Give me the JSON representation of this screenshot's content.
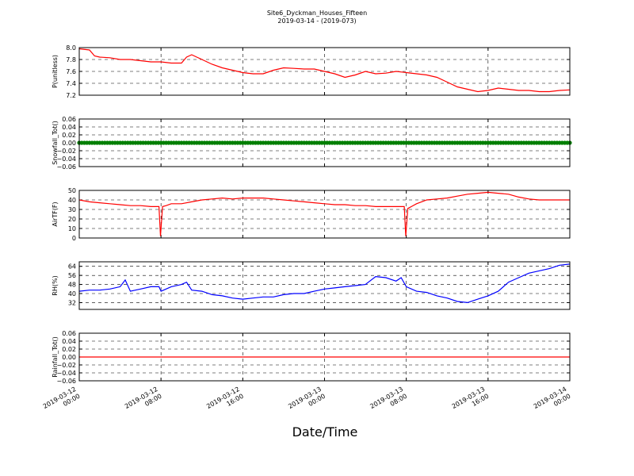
{
  "chart_data": {
    "type": "line",
    "title": "Site6_Dyckman_Houses_Fifteen",
    "subtitle": "2019-03-14 - (2019-073)",
    "xlabel": "Date/Time",
    "x_ticks": [
      {
        "line1": "2019-03-12",
        "line2": "00:00"
      },
      {
        "line1": "2019-03-12",
        "line2": "08:00"
      },
      {
        "line1": "2019-03-12",
        "line2": "16:00"
      },
      {
        "line1": "2019-03-13",
        "line2": "00:00"
      },
      {
        "line1": "2019-03-13",
        "line2": "08:00"
      },
      {
        "line1": "2019-03-13",
        "line2": "16:00"
      },
      {
        "line1": "2019-03-14",
        "line2": "00:00"
      }
    ],
    "xlim_hours": [
      0,
      48
    ],
    "grid": true,
    "panels": [
      {
        "ylabel": "P(unitless)",
        "color": "#ff0000",
        "style": "line",
        "ylim": [
          7.2,
          8.0
        ],
        "yticks": [
          "7.2",
          "7.4",
          "7.6",
          "7.8",
          "8.0"
        ],
        "x": [
          0,
          1,
          1.5,
          2,
          3,
          4,
          5,
          6,
          7,
          8,
          9,
          10,
          10.5,
          11,
          11.5,
          12,
          13,
          14,
          15,
          16,
          17,
          18,
          19,
          20,
          21,
          22,
          23,
          24,
          25,
          26,
          27,
          28,
          29,
          30,
          31,
          32,
          33,
          34,
          35,
          36,
          37,
          38,
          39,
          40,
          41,
          42,
          43,
          44,
          45,
          46,
          47,
          48
        ],
        "y": [
          7.98,
          7.96,
          7.86,
          7.84,
          7.83,
          7.8,
          7.8,
          7.78,
          7.76,
          7.76,
          7.74,
          7.74,
          7.84,
          7.88,
          7.84,
          7.8,
          7.72,
          7.66,
          7.62,
          7.58,
          7.56,
          7.56,
          7.62,
          7.66,
          7.65,
          7.64,
          7.64,
          7.6,
          7.56,
          7.5,
          7.54,
          7.6,
          7.56,
          7.57,
          7.6,
          7.58,
          7.56,
          7.54,
          7.5,
          7.42,
          7.34,
          7.3,
          7.26,
          7.28,
          7.32,
          7.3,
          7.28,
          7.28,
          7.26,
          7.26,
          7.28,
          7.29
        ]
      },
      {
        "ylabel": "Snowfall_Tot()",
        "color": "#007f00",
        "style": "markers",
        "ylim": [
          -0.06,
          0.06
        ],
        "yticks": [
          "−0.06",
          "−0.04",
          "−0.02",
          "0.00",
          "0.02",
          "0.04",
          "0.06"
        ],
        "constant": 0.0
      },
      {
        "ylabel": "AirTF(F)",
        "color": "#ff0000",
        "style": "line",
        "ylim": [
          0,
          50
        ],
        "yticks": [
          "0",
          "10",
          "20",
          "30",
          "40",
          "50"
        ],
        "x": [
          0,
          1,
          2,
          3,
          4,
          5,
          6,
          7,
          7.8,
          7.95,
          8.15,
          8.5,
          9,
          10,
          11,
          12,
          13,
          14,
          15,
          16,
          17,
          18,
          19,
          20,
          21,
          22,
          23,
          24,
          25,
          26,
          27,
          28,
          29,
          30,
          31,
          31.8,
          31.95,
          32.15,
          32.5,
          33,
          34,
          35,
          36,
          37,
          38,
          39,
          40,
          41,
          42,
          43,
          44,
          45,
          46,
          47,
          48
        ],
        "y": [
          40,
          38,
          37,
          36,
          35,
          34,
          34,
          33,
          33,
          2,
          33,
          34,
          36,
          36,
          38,
          40,
          41,
          42,
          41,
          42,
          42,
          42,
          41,
          40,
          39,
          38,
          37,
          36,
          35,
          35,
          34,
          34,
          33,
          33,
          33,
          33,
          2,
          31,
          33,
          36,
          40,
          41,
          42,
          44,
          46,
          47,
          48,
          47,
          46,
          43,
          41,
          40,
          40,
          40,
          40
        ]
      },
      {
        "ylabel": "RH(%)",
        "color": "#0000ff",
        "style": "line",
        "ylim": [
          26,
          68
        ],
        "yticks": [
          "32",
          "40",
          "48",
          "56",
          "64"
        ],
        "x": [
          0,
          1,
          2,
          3,
          4,
          4.5,
          5,
          6,
          7,
          7.8,
          8,
          9,
          10,
          10.5,
          11,
          12,
          13,
          14,
          15,
          16,
          17,
          18,
          19,
          20,
          21,
          22,
          23,
          24,
          25,
          26,
          27,
          28,
          29,
          30,
          31,
          31.5,
          32,
          33,
          34,
          35,
          36,
          37,
          38,
          39,
          40,
          41,
          42,
          43,
          44,
          45,
          46,
          47,
          48
        ],
        "y": [
          42,
          43,
          43,
          44,
          46,
          52,
          42,
          44,
          46,
          46,
          42,
          46,
          48,
          50,
          43,
          42,
          39,
          38,
          36,
          35,
          36,
          37,
          37,
          39,
          40,
          40,
          42,
          44,
          45,
          46,
          47,
          48,
          55,
          54,
          51,
          54,
          46,
          42,
          41,
          38,
          36,
          33,
          32,
          35,
          38,
          42,
          50,
          54,
          58,
          60,
          62,
          65,
          66
        ]
      },
      {
        "ylabel": "Rainfall_Tot()",
        "color": "#ff0000",
        "style": "line",
        "ylim": [
          -0.06,
          0.06
        ],
        "yticks": [
          "−0.06",
          "−0.04",
          "−0.02",
          "0.00",
          "0.02",
          "0.04",
          "0.06"
        ],
        "constant": 0.0
      }
    ]
  }
}
